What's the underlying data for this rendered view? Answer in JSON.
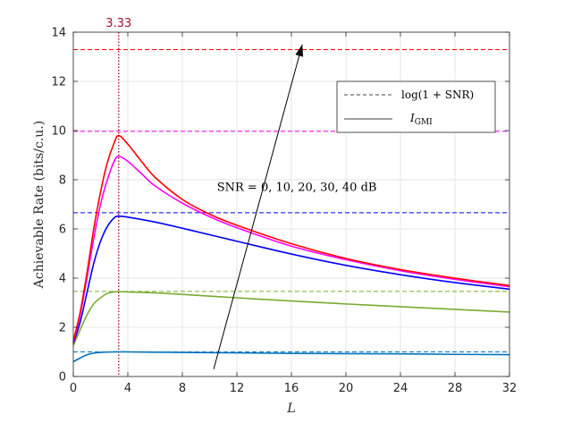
{
  "chart_data": {
    "type": "line",
    "xlabel": "L",
    "ylabel": "Achievable Rate (bits/c.u.)",
    "xlim": [
      0,
      32
    ],
    "ylim": [
      0,
      14
    ],
    "xticks": [
      0,
      4,
      8,
      12,
      16,
      20,
      24,
      28,
      32
    ],
    "yticks": [
      0,
      2,
      4,
      6,
      8,
      10,
      12,
      14
    ],
    "grid": true,
    "legend": {
      "placement": "top-right",
      "entries": [
        {
          "label": "log(1 + SNR)",
          "style": "dashed"
        },
        {
          "label_main": "I",
          "label_sub": "GMI",
          "style": "solid"
        }
      ]
    },
    "annotation_text": "SNR = 0, 10, 20, 30, 40 dB",
    "vline": {
      "x": 3.33,
      "label": "3.33",
      "color": "#a2142f"
    },
    "arrow": {
      "from": [
        10.3,
        0.3
      ],
      "to": [
        16.8,
        13.5
      ]
    },
    "capacity_lines": [
      {
        "y": 1.0,
        "color": "#0072bd"
      },
      {
        "y": 3.46,
        "color": "#77ac30"
      },
      {
        "y": 6.66,
        "color": "#0000ff"
      },
      {
        "y": 9.97,
        "color": "#ff00ff"
      },
      {
        "y": 13.29,
        "color": "#ff0000"
      }
    ],
    "series": [
      {
        "color": "#0072bd",
        "x": [
          0,
          0.5,
          1,
          1.5,
          2,
          3,
          3.33,
          4,
          6,
          8,
          12,
          16,
          20,
          24,
          28,
          32
        ],
        "values": [
          0.6,
          0.75,
          0.88,
          0.95,
          0.98,
          1.0,
          1.0,
          1.0,
          0.99,
          0.98,
          0.96,
          0.94,
          0.93,
          0.92,
          0.9,
          0.89
        ]
      },
      {
        "color": "#77ac30",
        "x": [
          0,
          0.5,
          1,
          1.5,
          2,
          2.5,
          3,
          3.33,
          4,
          6,
          8,
          12,
          16,
          20,
          24,
          28,
          32
        ],
        "values": [
          1.25,
          1.9,
          2.5,
          2.95,
          3.2,
          3.38,
          3.44,
          3.45,
          3.44,
          3.4,
          3.34,
          3.2,
          3.07,
          2.95,
          2.84,
          2.73,
          2.62
        ]
      },
      {
        "color": "#0000ff",
        "x": [
          0,
          0.5,
          1,
          1.5,
          2,
          2.5,
          3,
          3.33,
          4,
          6,
          8,
          12,
          16,
          20,
          24,
          28,
          32
        ],
        "values": [
          1.35,
          2.2,
          3.4,
          4.6,
          5.5,
          6.1,
          6.45,
          6.52,
          6.48,
          6.28,
          6.03,
          5.5,
          4.98,
          4.52,
          4.14,
          3.82,
          3.55
        ]
      },
      {
        "color": "#ff00ff",
        "x": [
          0,
          0.5,
          1,
          1.5,
          2,
          2.5,
          3,
          3.33,
          4,
          5,
          6,
          8,
          10,
          12,
          16,
          20,
          24,
          28,
          32
        ],
        "values": [
          1.4,
          2.5,
          4.0,
          5.6,
          7.0,
          8.0,
          8.75,
          8.95,
          8.75,
          8.25,
          7.75,
          7.05,
          6.5,
          6.05,
          5.3,
          4.75,
          4.3,
          3.95,
          3.65
        ]
      },
      {
        "color": "#ff0000",
        "x": [
          0,
          0.5,
          1,
          1.5,
          2,
          2.5,
          3,
          3.33,
          4,
          5,
          6,
          8,
          10,
          12,
          16,
          20,
          24,
          28,
          32
        ],
        "values": [
          1.45,
          2.6,
          4.2,
          6.0,
          7.5,
          8.7,
          9.5,
          9.8,
          9.45,
          8.75,
          8.1,
          7.2,
          6.6,
          6.15,
          5.4,
          4.8,
          4.35,
          4.0,
          3.7
        ]
      }
    ]
  }
}
